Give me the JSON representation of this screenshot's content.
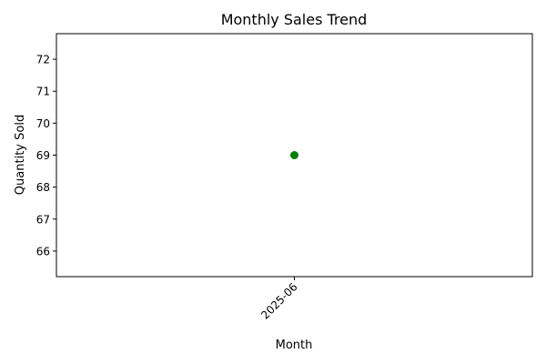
{
  "chart_data": {
    "type": "line",
    "title": "Monthly Sales Trend",
    "xlabel": "Month",
    "ylabel": "Quantity Sold",
    "categories": [
      "2025-06"
    ],
    "series": [
      {
        "values": [
          69
        ],
        "color": "#008000",
        "marker": "circle"
      }
    ],
    "ylim": [
      65.2,
      72.8
    ],
    "yticks": [
      66,
      67,
      68,
      69,
      70,
      71,
      72
    ],
    "xtick_rotation_deg": 45,
    "grid": false,
    "legend": "none"
  }
}
